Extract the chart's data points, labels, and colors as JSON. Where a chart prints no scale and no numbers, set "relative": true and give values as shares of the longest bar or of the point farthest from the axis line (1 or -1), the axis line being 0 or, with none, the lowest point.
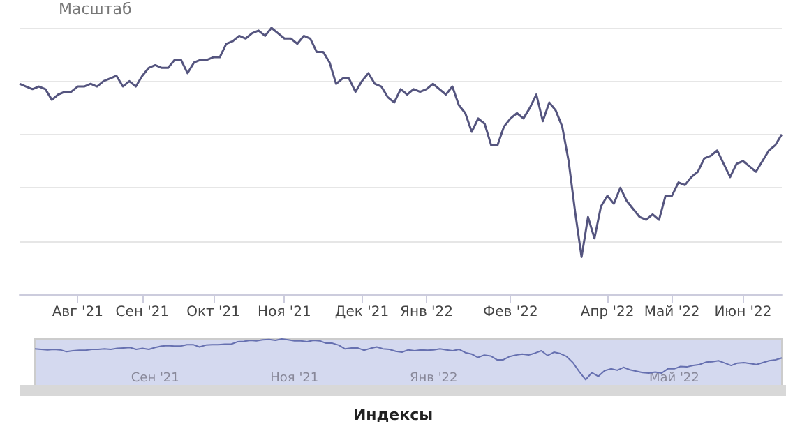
{
  "chart_data": [
    {
      "type": "line",
      "annotations": [
        "Масштаб"
      ],
      "relative": true,
      "grid": "y",
      "marker": "none",
      "line_style": "solid",
      "categories": [
        null,
        null,
        null,
        null,
        null,
        null,
        null,
        null,
        null,
        "Авг '21",
        null,
        null,
        null,
        null,
        null,
        null,
        null,
        null,
        null,
        "Сен '21",
        null,
        null,
        null,
        null,
        null,
        null,
        null,
        null,
        null,
        null,
        "Окт '21",
        null,
        null,
        null,
        null,
        null,
        null,
        null,
        null,
        null,
        null,
        "Ноя '21",
        null,
        null,
        null,
        null,
        null,
        null,
        null,
        null,
        null,
        null,
        null,
        "Дек '21",
        null,
        null,
        null,
        null,
        null,
        null,
        null,
        null,
        null,
        "Янв '22",
        null,
        null,
        null,
        null,
        null,
        null,
        null,
        null,
        null,
        null,
        null,
        null,
        "Фев '22",
        null,
        null,
        null,
        null,
        null,
        null,
        null,
        null,
        null,
        null,
        null,
        null,
        null,
        null,
        "Апр '22",
        null,
        null,
        null,
        null,
        null,
        null,
        null,
        null,
        null,
        "Май '22",
        null,
        null,
        null,
        null,
        null,
        null,
        null,
        null,
        null,
        null,
        "Июн '22",
        null,
        null,
        null,
        null,
        null,
        null
      ],
      "series": [
        {
          "color": "#55557f",
          "values": [
            0.79,
            0.78,
            0.77,
            0.78,
            0.77,
            0.73,
            0.75,
            0.76,
            0.76,
            0.78,
            0.78,
            0.79,
            0.78,
            0.8,
            0.81,
            0.82,
            0.78,
            0.8,
            0.78,
            0.82,
            0.85,
            0.86,
            0.85,
            0.85,
            0.88,
            0.88,
            0.83,
            0.87,
            0.88,
            0.88,
            0.89,
            0.89,
            0.94,
            0.95,
            0.97,
            0.96,
            0.98,
            0.99,
            0.97,
            1,
            0.98,
            0.96,
            0.96,
            0.94,
            0.97,
            0.96,
            0.91,
            0.91,
            0.87,
            0.79,
            0.81,
            0.81,
            0.76,
            0.8,
            0.83,
            0.79,
            0.78,
            0.74,
            0.72,
            0.77,
            0.75,
            0.77,
            0.76,
            0.77,
            0.79,
            0.77,
            0.75,
            0.78,
            0.71,
            0.68,
            0.61,
            0.66,
            0.64,
            0.56,
            0.56,
            0.63,
            0.66,
            0.68,
            0.66,
            0.7,
            0.75,
            0.65,
            0.72,
            0.69,
            0.63,
            0.5,
            0.31,
            0.14,
            0.29,
            0.21,
            0.33,
            0.37,
            0.34,
            0.4,
            0.35,
            0.32,
            0.29,
            0.28,
            0.3,
            0.28,
            0.37,
            0.37,
            0.42,
            0.41,
            0.44,
            0.46,
            0.51,
            0.52,
            0.54,
            0.49,
            0.44,
            0.49,
            0.5,
            0.48,
            0.46,
            0.5,
            0.54,
            0.56,
            0.6
          ]
        }
      ]
    },
    {
      "type": "line",
      "title": "Индексы",
      "relative": true,
      "marker": "none",
      "line_style": "solid",
      "categories": [
        null,
        null,
        null,
        null,
        null,
        null,
        null,
        null,
        null,
        null,
        null,
        null,
        null,
        null,
        null,
        null,
        null,
        null,
        null,
        "Сен '21",
        null,
        null,
        null,
        null,
        null,
        null,
        null,
        null,
        null,
        null,
        null,
        null,
        null,
        null,
        null,
        null,
        null,
        null,
        null,
        null,
        null,
        "Ноя '21",
        null,
        null,
        null,
        null,
        null,
        null,
        null,
        null,
        null,
        null,
        null,
        null,
        null,
        null,
        null,
        null,
        null,
        null,
        null,
        null,
        null,
        "Янв '22",
        null,
        null,
        null,
        null,
        null,
        null,
        null,
        null,
        null,
        null,
        null,
        null,
        null,
        null,
        null,
        null,
        null,
        null,
        null,
        null,
        null,
        null,
        null,
        null,
        null,
        null,
        null,
        null,
        null,
        null,
        null,
        null,
        null,
        null,
        null,
        null,
        null,
        "Май '22",
        null,
        null,
        null,
        null,
        null,
        null,
        null,
        null,
        null,
        null,
        null,
        null,
        null,
        null,
        null,
        null,
        null
      ],
      "series": [
        {
          "color": "#6670b0",
          "values": [
            0.79,
            0.78,
            0.77,
            0.78,
            0.77,
            0.73,
            0.75,
            0.76,
            0.76,
            0.78,
            0.78,
            0.79,
            0.78,
            0.8,
            0.81,
            0.82,
            0.78,
            0.8,
            0.78,
            0.82,
            0.85,
            0.86,
            0.85,
            0.85,
            0.88,
            0.88,
            0.83,
            0.87,
            0.88,
            0.88,
            0.89,
            0.89,
            0.94,
            0.95,
            0.97,
            0.96,
            0.98,
            0.99,
            0.97,
            1,
            0.98,
            0.96,
            0.96,
            0.94,
            0.97,
            0.96,
            0.91,
            0.91,
            0.87,
            0.79,
            0.81,
            0.81,
            0.76,
            0.8,
            0.83,
            0.79,
            0.78,
            0.74,
            0.72,
            0.77,
            0.75,
            0.77,
            0.76,
            0.77,
            0.79,
            0.77,
            0.75,
            0.78,
            0.71,
            0.68,
            0.61,
            0.66,
            0.64,
            0.56,
            0.56,
            0.63,
            0.66,
            0.68,
            0.66,
            0.7,
            0.75,
            0.65,
            0.72,
            0.69,
            0.63,
            0.5,
            0.31,
            0.14,
            0.29,
            0.21,
            0.33,
            0.37,
            0.34,
            0.4,
            0.35,
            0.32,
            0.29,
            0.28,
            0.3,
            0.28,
            0.37,
            0.37,
            0.42,
            0.41,
            0.44,
            0.46,
            0.51,
            0.52,
            0.54,
            0.49,
            0.44,
            0.49,
            0.5,
            0.48,
            0.46,
            0.5,
            0.54,
            0.56,
            0.6
          ]
        }
      ]
    }
  ]
}
